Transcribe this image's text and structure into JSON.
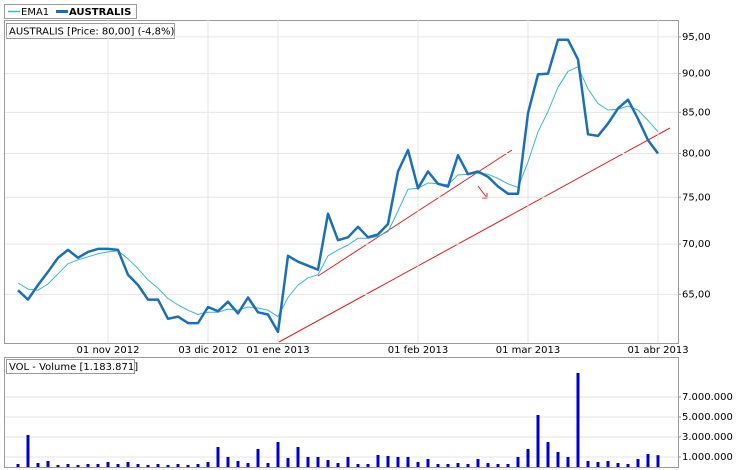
{
  "chart_data": [
    {
      "type": "line",
      "title": "AUSTRALIS [Price: 80,00] (-4,8%)",
      "categories": [
        null,
        null,
        null,
        null,
        null,
        null,
        null,
        null,
        null,
        "01 nov 2012",
        null,
        null,
        null,
        null,
        null,
        null,
        null,
        null,
        null,
        "03 dic 2012",
        null,
        null,
        null,
        null,
        null,
        null,
        "01 ene 2013",
        null,
        null,
        null,
        null,
        null,
        null,
        null,
        null,
        null,
        null,
        null,
        null,
        null,
        "01 feb 2013",
        null,
        null,
        null,
        null,
        null,
        null,
        null,
        null,
        null,
        null,
        "01 mar 2013",
        null,
        null,
        null,
        null,
        null,
        null,
        null,
        null,
        null,
        null,
        null,
        null,
        "01 abr 2013"
      ],
      "series": [
        {
          "name": "EMA1",
          "color": "#33bbcc",
          "values": [
            66.1,
            65.5,
            65.4,
            66.0,
            67.0,
            68.0,
            68.4,
            68.7,
            69.0,
            69.2,
            69.3,
            68.5,
            67.5,
            66.4,
            65.6,
            64.6,
            64.0,
            63.5,
            63.1,
            63.3,
            63.3,
            63.6,
            63.5,
            63.8,
            63.7,
            63.5,
            62.9,
            64.7,
            65.9,
            66.6,
            66.9,
            68.8,
            69.4,
            69.9,
            70.6,
            70.6,
            70.8,
            71.3,
            73.5,
            75.9,
            76.0,
            76.6,
            76.5,
            76.4,
            77.5,
            77.6,
            77.7,
            77.6,
            77.1,
            76.5,
            76.1,
            79.0,
            82.6,
            85.1,
            88.2,
            90.3,
            90.9,
            88.0,
            86.1,
            85.3,
            85.4,
            85.8,
            85.3,
            84.0,
            82.6
          ]
        },
        {
          "name": "AUSTRALIS",
          "color": "#1a6fb8",
          "values": [
            65.4,
            64.5,
            65.9,
            67.2,
            68.6,
            69.4,
            68.6,
            69.2,
            69.5,
            69.5,
            69.4,
            66.9,
            65.9,
            64.5,
            64.5,
            62.7,
            62.9,
            62.3,
            62.3,
            63.8,
            63.4,
            64.3,
            63.2,
            64.7,
            63.3,
            63.1,
            61.5,
            68.8,
            68.2,
            67.8,
            67.4,
            73.2,
            70.4,
            70.7,
            71.8,
            70.7,
            71.0,
            72.1,
            77.9,
            80.4,
            76.0,
            77.9,
            76.5,
            76.2,
            79.8,
            77.6,
            77.9,
            77.3,
            76.2,
            75.4,
            75.4,
            84.9,
            89.9,
            90.0,
            94.6,
            94.6,
            91.9,
            82.3,
            82.1,
            83.6,
            85.5,
            86.6,
            84.2,
            81.6,
            80.0
          ]
        }
      ],
      "ylim": [
        60.5,
        97.4
      ],
      "log_scale": true,
      "grid": true,
      "yticks": [
        {
          "value": 65,
          "label": "65,00"
        },
        {
          "value": 70,
          "label": "70,00"
        },
        {
          "value": 75,
          "label": "75,00"
        },
        {
          "value": 80,
          "label": "80,00"
        },
        {
          "value": 85,
          "label": "85,00"
        },
        {
          "value": 90,
          "label": "90,00"
        },
        {
          "value": 95,
          "label": "95,00"
        }
      ]
    },
    {
      "type": "bar",
      "title": "VOL - Volume [1.183.871]",
      "color": "#0000cc",
      "values": [
        300000,
        3200000,
        400000,
        600000,
        200000,
        300000,
        200000,
        300000,
        300000,
        500000,
        300000,
        500000,
        300000,
        200000,
        300000,
        200000,
        300000,
        200000,
        300000,
        500000,
        2000000,
        1000000,
        600000,
        400000,
        1800000,
        400000,
        2500000,
        900000,
        2000000,
        1000000,
        1000000,
        700000,
        400000,
        1000000,
        300000,
        300000,
        1200000,
        1100000,
        1000000,
        1000000,
        500000,
        800000,
        300000,
        300000,
        400000,
        300000,
        800000,
        400000,
        300000,
        300000,
        1000000,
        1800000,
        5200000,
        2500000,
        1500000,
        1000000,
        9400000,
        600000,
        500000,
        600000,
        400000,
        300000,
        800000,
        1300000,
        1183871
      ],
      "ylim": [
        0,
        11000000
      ],
      "grid": true,
      "yticks": [
        {
          "value": 1000000,
          "label": "1.000.000"
        },
        {
          "value": 3000000,
          "label": "3.000.000"
        },
        {
          "value": 5000000,
          "label": "5.000.000"
        },
        {
          "value": 7000000,
          "label": "7.000.000"
        }
      ]
    }
  ]
}
